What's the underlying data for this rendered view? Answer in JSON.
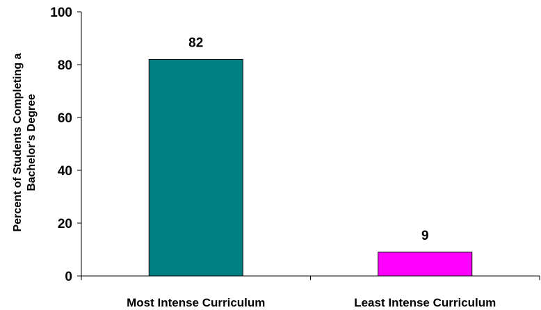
{
  "chart_data": {
    "type": "bar",
    "categories": [
      "Most Intense Curriculum",
      "Least Intense Curriculum"
    ],
    "values": [
      82,
      9
    ],
    "data_labels": [
      "82",
      "9"
    ],
    "colors": [
      "#008080",
      "#FF00FF"
    ],
    "ylabel_lines": [
      "Percent of Students Completing a",
      "Bachelor's Degree"
    ],
    "ylim": [
      0,
      100
    ],
    "yticks": [
      0,
      20,
      40,
      60,
      80,
      100
    ],
    "ytick_labels": [
      "0",
      "20",
      "40",
      "60",
      "80",
      "100"
    ],
    "grid": false,
    "legend": "none"
  }
}
